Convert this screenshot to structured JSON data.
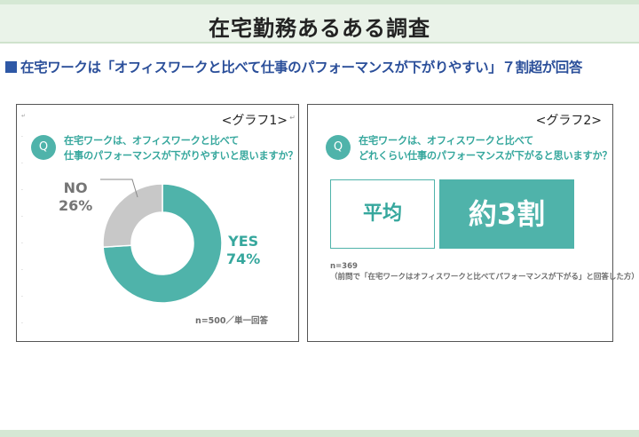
{
  "page": {
    "title": "在宅勤務あるある調査",
    "headline": "在宅ワークは「オフィスワークと比べて仕事のパフォーマンスが下がりやすい」７割超が回答"
  },
  "colors": {
    "accent": "#4fb3aa",
    "accent_text": "#36a79d",
    "headline": "#2b4f9a",
    "no_slice": "#c8c8c8",
    "band": "#eaf3e9"
  },
  "graph1": {
    "label": "<グラフ1>",
    "q_icon": "Q",
    "question_line1": "在宅ワークは、オフィスワークと比べて",
    "question_line2": "仕事のパフォーマンスが下がりやすいと思いますか？",
    "note": "n=500／単一回答",
    "chart_data": {
      "type": "pie",
      "style": "donut",
      "title": "",
      "categories": [
        "YES",
        "NO"
      ],
      "values": [
        74,
        26
      ],
      "unit": "%",
      "labels": [
        {
          "category": "YES",
          "text": "74%"
        },
        {
          "category": "NO",
          "text": "26%"
        }
      ]
    }
  },
  "graph2": {
    "label": "<グラフ2>",
    "q_icon": "Q",
    "question_line1": "在宅ワークは、オフィスワークと比べて",
    "question_line2": "どれくらい仕事のパフォーマンスが下がると思いますか？",
    "avg_label": "平均",
    "result": "約3割",
    "note_line1": "n=369",
    "note_line2": "（前問で「在宅ワークはオフィスワークと比べてパフォーマンスが下がる」と回答した方）"
  }
}
